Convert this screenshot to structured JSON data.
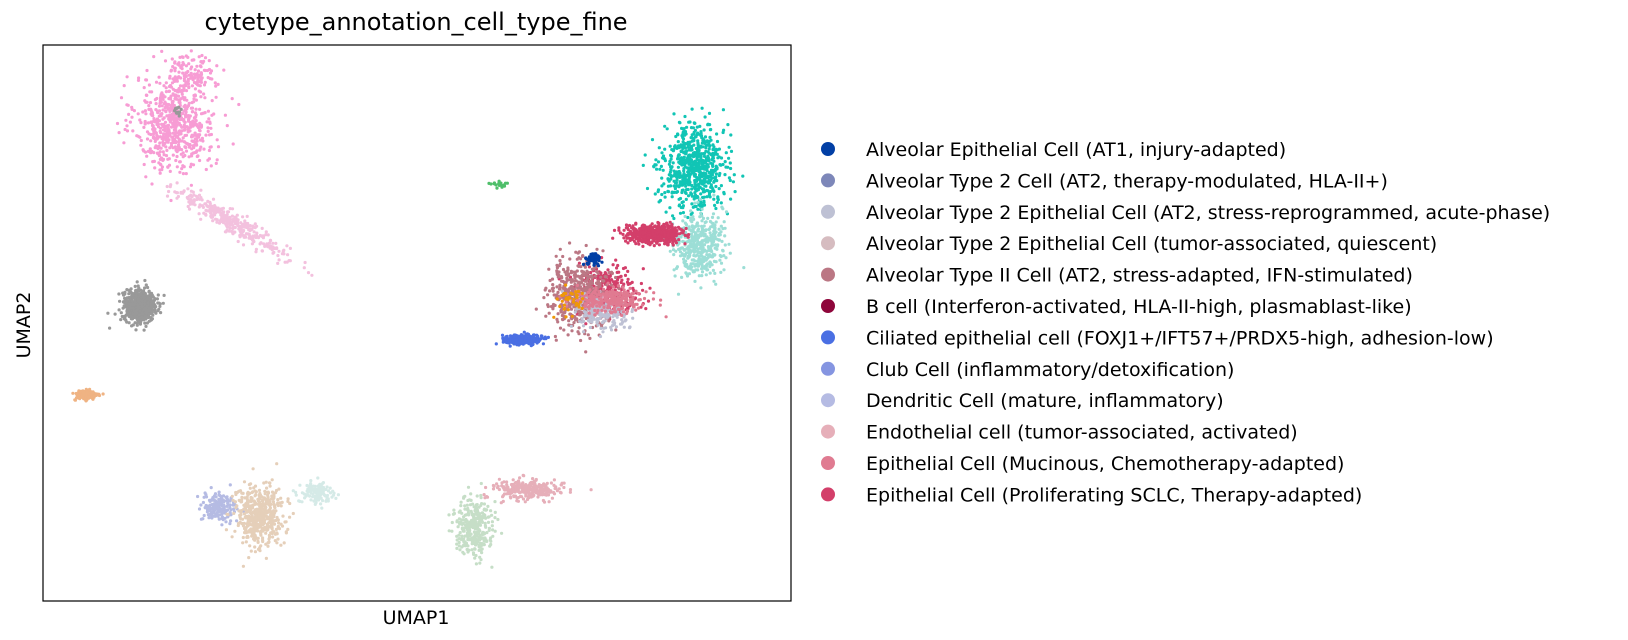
{
  "chart_data": {
    "type": "scatter",
    "title": "cytetype_annotation_cell_type_fine",
    "xlabel": "UMAP1",
    "ylabel": "UMAP2",
    "xticks": false,
    "yticks": false,
    "grid": false,
    "legend_position": "right",
    "legend": [
      {
        "label": "Alveolar Epithelial Cell (AT1, injury-adapted)",
        "color": "#023fa5"
      },
      {
        "label": "Alveolar Type 2 Cell (AT2, therapy-modulated, HLA-II+)",
        "color": "#7d87b9"
      },
      {
        "label": "Alveolar Type 2 Epithelial Cell (AT2, stress-reprogrammed, acute-phase)",
        "color": "#bec1d4"
      },
      {
        "label": "Alveolar Type 2 Epithelial Cell (tumor-associated, quiescent)",
        "color": "#d6bcc0"
      },
      {
        "label": "Alveolar Type II Cell (AT2, stress-adapted, IFN-stimulated)",
        "color": "#bb7784"
      },
      {
        "label": "B cell (Interferon-activated, HLA-II-high, plasmablast-like)",
        "color": "#8e063b"
      },
      {
        "label": "Ciliated epithelial cell (FOXJ1+/IFT57+/PRDX5-high, adhesion-low)",
        "color": "#4a6fe3"
      },
      {
        "label": "Club Cell (inflammatory/detoxification)",
        "color": "#8595e1"
      },
      {
        "label": "Dendritic Cell (mature, inflammatory)",
        "color": "#b5bbe3"
      },
      {
        "label": "Endothelial cell (tumor-associated, activated)",
        "color": "#e6afb9"
      },
      {
        "label": "Epithelial Cell (Mucinous, Chemotherapy-adapted)",
        "color": "#e07b91"
      },
      {
        "label": "Epithelial Cell (Proliferating SCLC, Therapy-adapted)",
        "color": "#d33f6a"
      }
    ],
    "extra_colors": {
      "pink": "#f79cd4",
      "light_pink": "#f3c1de",
      "orange": "#efb383",
      "teal": "#11c5b5",
      "light_teal": "#9cded6",
      "beige": "#e5cfb9",
      "sage": "#c6dec7",
      "mint": "#d5eae7",
      "gold": "#ef9708",
      "green": "#4fbf6a"
    },
    "clusters": [
      {
        "color": "pink",
        "cx": 3.0,
        "cy": 8.6,
        "rx": 0.9,
        "ry": 0.85,
        "n": 650
      },
      {
        "color": "pink",
        "cx": 3.4,
        "cy": 9.5,
        "rx": 0.5,
        "ry": 0.35,
        "n": 120
      },
      {
        "color": "B cell",
        "cx": 3.05,
        "cy": 8.8,
        "rx": 0.08,
        "ry": 0.08,
        "n": 14
      },
      {
        "color": "light_pink",
        "cx": 4.3,
        "cy": 6.8,
        "rx": 1.4,
        "ry": 0.18,
        "n": 340,
        "tilt": -0.45
      },
      {
        "color": "B cell",
        "cx": 2.2,
        "cy": 5.3,
        "rx": 0.35,
        "ry": 0.28,
        "n": 700
      },
      {
        "color": "orange",
        "cx": 1.0,
        "cy": 3.7,
        "rx": 0.28,
        "ry": 0.1,
        "n": 130
      },
      {
        "color": "teal",
        "cx": 14.8,
        "cy": 7.8,
        "rx": 0.7,
        "ry": 0.75,
        "n": 700
      },
      {
        "color": "light_teal",
        "cx": 14.9,
        "cy": 6.4,
        "rx": 0.55,
        "ry": 0.6,
        "n": 420
      },
      {
        "color": "Epithelial Cell (Proliferating SCLC, Therapy-adapted)",
        "cx": 13.9,
        "cy": 6.6,
        "rx": 0.65,
        "ry": 0.16,
        "n": 480
      },
      {
        "color": "Epithelial Cell (Proliferating SCLC, Therapy-adapted)",
        "cx": 12.8,
        "cy": 5.6,
        "rx": 0.75,
        "ry": 0.45,
        "n": 300
      },
      {
        "color": "Alveolar Type II Cell (AT2, stress-adapted, IFN-stimulated)",
        "cx": 12.2,
        "cy": 5.5,
        "rx": 0.7,
        "ry": 0.6,
        "n": 520
      },
      {
        "color": "Alveolar Type 2 Epithelial Cell (AT2, stress-reprogrammed, acute-phase)",
        "cx": 12.7,
        "cy": 5.2,
        "rx": 0.6,
        "ry": 0.3,
        "n": 200
      },
      {
        "color": "Epithelial Cell (Mucinous, Chemotherapy-adapted)",
        "cx": 12.9,
        "cy": 5.4,
        "rx": 0.8,
        "ry": 0.22,
        "n": 260
      },
      {
        "color": "gold",
        "cx": 12.0,
        "cy": 5.4,
        "rx": 0.3,
        "ry": 0.25,
        "n": 40
      },
      {
        "color": "Alveolar Epithelial Cell (AT1, injury-adapted)",
        "cx": 12.5,
        "cy": 6.15,
        "rx": 0.18,
        "ry": 0.12,
        "n": 60
      },
      {
        "color": "Ciliated epithelial cell (FOXJ1+/IFT57+/PRDX5-high, adhesion-low)",
        "cx": 10.9,
        "cy": 4.7,
        "rx": 0.45,
        "ry": 0.09,
        "n": 260
      },
      {
        "color": "green",
        "cx": 10.35,
        "cy": 7.5,
        "rx": 0.2,
        "ry": 0.05,
        "n": 20
      },
      {
        "color": "Dendritic Cell (mature, inflammatory)",
        "cx": 4.0,
        "cy": 1.7,
        "rx": 0.4,
        "ry": 0.25,
        "n": 180
      },
      {
        "color": "beige",
        "cx": 4.9,
        "cy": 1.5,
        "rx": 0.55,
        "ry": 0.55,
        "n": 480
      },
      {
        "color": "mint",
        "cx": 6.2,
        "cy": 1.95,
        "rx": 0.35,
        "ry": 0.22,
        "n": 120
      },
      {
        "color": "sage",
        "cx": 9.8,
        "cy": 1.3,
        "rx": 0.45,
        "ry": 0.5,
        "n": 330
      },
      {
        "color": "Endothelial cell (tumor-associated, activated)",
        "cx": 11.0,
        "cy": 2.0,
        "rx": 0.8,
        "ry": 0.17,
        "n": 260
      }
    ],
    "xlim": [
      0,
      17
    ],
    "ylim": [
      0,
      10
    ]
  }
}
